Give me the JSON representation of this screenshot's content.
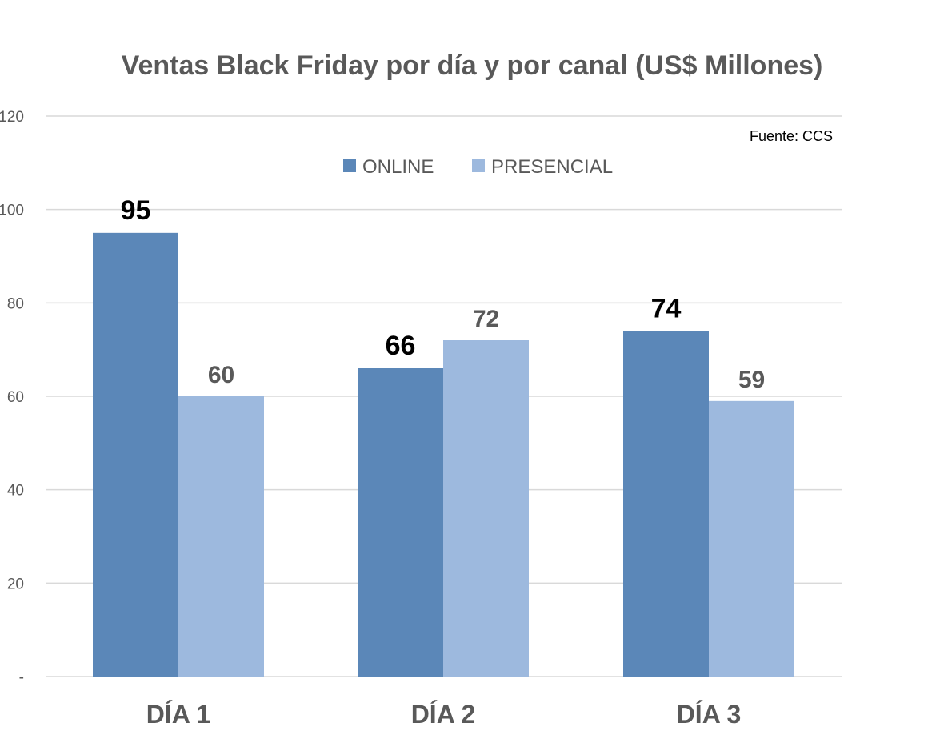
{
  "chart_data": {
    "type": "bar",
    "title": "Ventas Black Friday por día y por canal (US$ Millones)",
    "source": "Fuente:  CCS",
    "categories": [
      "DÍA 1",
      "DÍA 2",
      "DÍA 3"
    ],
    "series": [
      {
        "name": "ONLINE",
        "values": [
          95,
          66,
          74
        ],
        "color": "#5b87b8",
        "label_color": "#000000"
      },
      {
        "name": "PRESENCIAL",
        "values": [
          60,
          72,
          59
        ],
        "color": "#9db9de",
        "label_color": "#595959"
      }
    ],
    "y_ticks": [
      {
        "value": 0,
        "label": "-"
      },
      {
        "value": 20,
        "label": "20"
      },
      {
        "value": 40,
        "label": "40"
      },
      {
        "value": 60,
        "label": "60"
      },
      {
        "value": 80,
        "label": "80"
      },
      {
        "value": 100,
        "label": "100"
      },
      {
        "value": 120,
        "label": "120"
      }
    ],
    "ylim": [
      0,
      120
    ],
    "grid": true,
    "legend_position": "top-center",
    "gridline_color": "#d9d9d9"
  }
}
